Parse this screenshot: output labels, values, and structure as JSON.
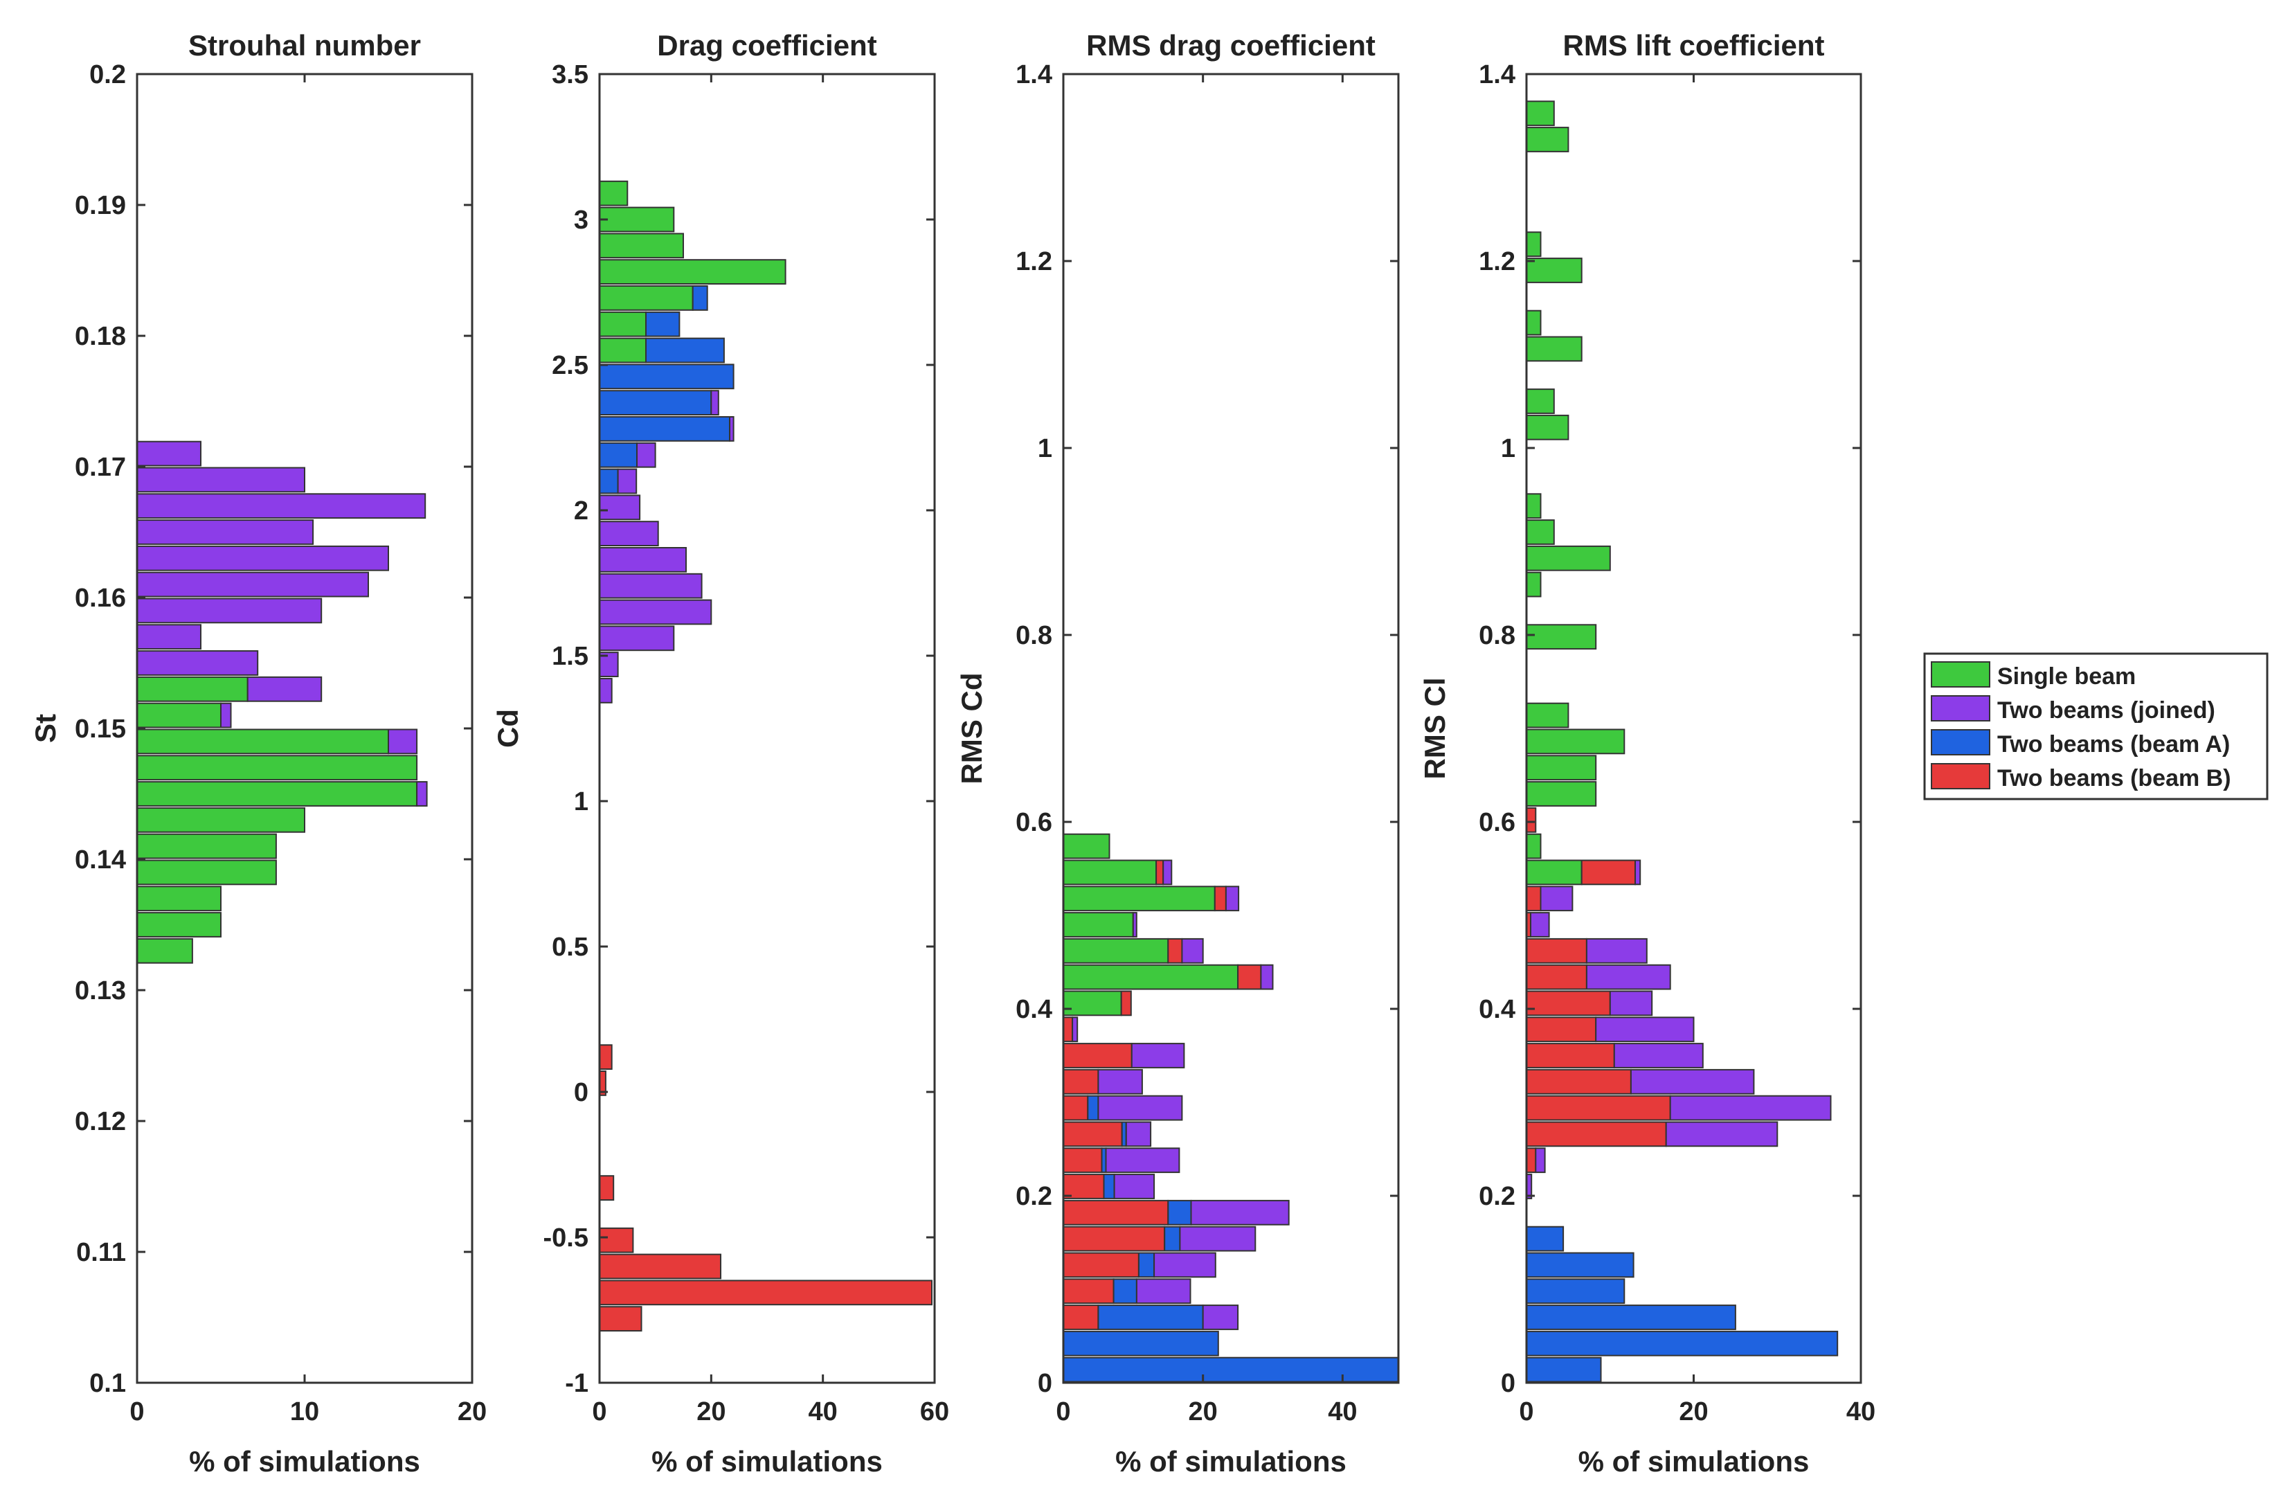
{
  "colors": {
    "single": "#3ec93e",
    "joined": "#8c3de8",
    "beamA": "#1f63e0",
    "beamB": "#e63a3a"
  },
  "legend": [
    {
      "key": "single",
      "label": "Single beam"
    },
    {
      "key": "joined",
      "label": "Two beams (joined)"
    },
    {
      "key": "beamA",
      "label": "Two beams (beam A)"
    },
    {
      "key": "beamB",
      "label": "Two beams (beam B)"
    }
  ],
  "chart_data": [
    {
      "type": "bar",
      "orientation": "horizontal-stacked-histogram",
      "title": "Strouhal number",
      "xlabel": "% of simulations",
      "ylabel": "St",
      "xlim": [
        0,
        20
      ],
      "ylim": [
        0.1,
        0.2
      ],
      "xticks": [
        "0",
        "10",
        "20"
      ],
      "xtickvals": [
        0,
        10,
        20
      ],
      "yticks": [
        "0.1",
        "0.11",
        "0.12",
        "0.13",
        "0.14",
        "0.15",
        "0.16",
        "0.17",
        "0.18",
        "0.19",
        "0.2"
      ],
      "ytickvals": [
        0.1,
        0.11,
        0.12,
        0.13,
        0.14,
        0.15,
        0.16,
        0.17,
        0.18,
        0.19,
        0.2
      ],
      "binwidth": 0.002,
      "bins": [
        {
          "y": 0.171,
          "single": 0,
          "beamB": 0,
          "beamA": 0,
          "joined": 3.8
        },
        {
          "y": 0.169,
          "single": 0,
          "beamB": 0,
          "beamA": 0,
          "joined": 10
        },
        {
          "y": 0.167,
          "single": 0,
          "beamB": 0,
          "beamA": 0,
          "joined": 17.2
        },
        {
          "y": 0.165,
          "single": 0,
          "beamB": 0,
          "beamA": 0,
          "joined": 10.5
        },
        {
          "y": 0.163,
          "single": 0,
          "beamB": 0,
          "beamA": 0,
          "joined": 15
        },
        {
          "y": 0.161,
          "single": 0,
          "beamB": 0,
          "beamA": 0,
          "joined": 13.8
        },
        {
          "y": 0.159,
          "single": 0,
          "beamB": 0,
          "beamA": 0,
          "joined": 11
        },
        {
          "y": 0.157,
          "single": 0,
          "beamB": 0,
          "beamA": 0,
          "joined": 3.8
        },
        {
          "y": 0.155,
          "single": 0,
          "beamB": 0,
          "beamA": 0,
          "joined": 7.2
        },
        {
          "y": 0.153,
          "single": 6.6,
          "beamB": 0,
          "beamA": 0,
          "joined": 4.4
        },
        {
          "y": 0.151,
          "single": 5,
          "beamB": 0,
          "beamA": 0,
          "joined": 0.6
        },
        {
          "y": 0.149,
          "single": 15,
          "beamB": 0,
          "beamA": 0,
          "joined": 1.7
        },
        {
          "y": 0.147,
          "single": 16.7,
          "beamB": 0,
          "beamA": 0,
          "joined": 0
        },
        {
          "y": 0.145,
          "single": 16.7,
          "beamB": 0,
          "beamA": 0,
          "joined": 0.6
        },
        {
          "y": 0.143,
          "single": 10,
          "beamB": 0,
          "beamA": 0,
          "joined": 0
        },
        {
          "y": 0.141,
          "single": 8.3,
          "beamB": 0,
          "beamA": 0,
          "joined": 0
        },
        {
          "y": 0.139,
          "single": 8.3,
          "beamB": 0,
          "beamA": 0,
          "joined": 0
        },
        {
          "y": 0.137,
          "single": 5,
          "beamB": 0,
          "beamA": 0,
          "joined": 0
        },
        {
          "y": 0.135,
          "single": 5,
          "beamB": 0,
          "beamA": 0,
          "joined": 0
        },
        {
          "y": 0.133,
          "single": 3.3,
          "beamB": 0,
          "beamA": 0,
          "joined": 0
        }
      ]
    },
    {
      "type": "bar",
      "orientation": "horizontal-stacked-histogram",
      "title": "Drag coefficient",
      "xlabel": "% of simulations",
      "ylabel": "Cd",
      "xlim": [
        0,
        60
      ],
      "ylim": [
        -1,
        3.5
      ],
      "xticks": [
        "0",
        "20",
        "40",
        "60"
      ],
      "xtickvals": [
        0,
        20,
        40,
        60
      ],
      "yticks": [
        "-1",
        "-0.5",
        "0",
        "0.5",
        "1",
        "1.5",
        "2",
        "2.5",
        "3",
        "3.5"
      ],
      "ytickvals": [
        -1,
        -0.5,
        0,
        0.5,
        1,
        1.5,
        2,
        2.5,
        3,
        3.5
      ],
      "binwidth": 0.09,
      "bins": [
        {
          "y": 3.09,
          "single": 5,
          "beamB": 0,
          "beamA": 0,
          "joined": 0
        },
        {
          "y": 3.0,
          "single": 13.3,
          "beamB": 0,
          "beamA": 0,
          "joined": 0
        },
        {
          "y": 2.91,
          "single": 15,
          "beamB": 0,
          "beamA": 0,
          "joined": 0
        },
        {
          "y": 2.82,
          "single": 33.3,
          "beamB": 0,
          "beamA": 0,
          "joined": 0
        },
        {
          "y": 2.73,
          "single": 16.7,
          "beamB": 0,
          "beamA": 2.6,
          "joined": 0
        },
        {
          "y": 2.64,
          "single": 8.3,
          "beamB": 0,
          "beamA": 6,
          "joined": 0
        },
        {
          "y": 2.55,
          "single": 8.3,
          "beamB": 0,
          "beamA": 14,
          "joined": 0
        },
        {
          "y": 2.46,
          "single": 0,
          "beamB": 0,
          "beamA": 24,
          "joined": 0
        },
        {
          "y": 2.37,
          "single": 0,
          "beamB": 0,
          "beamA": 20,
          "joined": 1.3
        },
        {
          "y": 2.28,
          "single": 0,
          "beamB": 0,
          "beamA": 23.3,
          "joined": 0.7
        },
        {
          "y": 2.19,
          "single": 0,
          "beamB": 0,
          "beamA": 6.7,
          "joined": 3.3
        },
        {
          "y": 2.1,
          "single": 0,
          "beamB": 0,
          "beamA": 3.3,
          "joined": 3.3
        },
        {
          "y": 2.01,
          "single": 0,
          "beamB": 0,
          "beamA": 0,
          "joined": 7.2
        },
        {
          "y": 1.92,
          "single": 0,
          "beamB": 0,
          "beamA": 0,
          "joined": 10.5
        },
        {
          "y": 1.83,
          "single": 0,
          "beamB": 0,
          "beamA": 0,
          "joined": 15.5
        },
        {
          "y": 1.74,
          "single": 0,
          "beamB": 0,
          "beamA": 0,
          "joined": 18.3
        },
        {
          "y": 1.65,
          "single": 0,
          "beamB": 0,
          "beamA": 0,
          "joined": 20
        },
        {
          "y": 1.56,
          "single": 0,
          "beamB": 0,
          "beamA": 0,
          "joined": 13.3
        },
        {
          "y": 1.47,
          "single": 0,
          "beamB": 0,
          "beamA": 0,
          "joined": 3.3
        },
        {
          "y": 1.38,
          "single": 0,
          "beamB": 0,
          "beamA": 0,
          "joined": 2.2
        },
        {
          "y": 0.12,
          "single": 0,
          "beamB": 2.2,
          "beamA": 0,
          "joined": 0
        },
        {
          "y": 0.03,
          "single": 0,
          "beamB": 1.1,
          "beamA": 0,
          "joined": 0
        },
        {
          "y": -0.33,
          "single": 0,
          "beamB": 2.5,
          "beamA": 0,
          "joined": 0
        },
        {
          "y": -0.51,
          "single": 0,
          "beamB": 6,
          "beamA": 0,
          "joined": 0
        },
        {
          "y": -0.6,
          "single": 0,
          "beamB": 21.7,
          "beamA": 0,
          "joined": 0
        },
        {
          "y": -0.69,
          "single": 0,
          "beamB": 59.5,
          "beamA": 0,
          "joined": 0
        },
        {
          "y": -0.78,
          "single": 0,
          "beamB": 7.5,
          "beamA": 0,
          "joined": 0
        }
      ]
    },
    {
      "type": "bar",
      "orientation": "horizontal-stacked-histogram",
      "title": "RMS drag coefficient",
      "xlabel": "% of simulations",
      "ylabel": "RMS Cd",
      "xlim": [
        0,
        48
      ],
      "ylim": [
        0,
        1.4
      ],
      "xticks": [
        "0",
        "20",
        "40"
      ],
      "xtickvals": [
        0,
        20,
        40
      ],
      "yticks": [
        "0",
        "0.2",
        "0.4",
        "0.6",
        "0.8",
        "1",
        "1.2",
        "1.4"
      ],
      "ytickvals": [
        0,
        0.2,
        0.4,
        0.6,
        0.8,
        1.0,
        1.2,
        1.4
      ],
      "binwidth": 0.028,
      "bins": [
        {
          "y": 0.574,
          "single": 6.6,
          "beamB": 0,
          "beamA": 0,
          "joined": 0
        },
        {
          "y": 0.546,
          "single": 13.3,
          "beamB": 1,
          "beamA": 0,
          "joined": 1.2
        },
        {
          "y": 0.518,
          "single": 21.7,
          "beamB": 1.6,
          "beamA": 0,
          "joined": 1.8
        },
        {
          "y": 0.49,
          "single": 10,
          "beamB": 0,
          "beamA": 0,
          "joined": 0.5
        },
        {
          "y": 0.462,
          "single": 15,
          "beamB": 2,
          "beamA": 0,
          "joined": 3
        },
        {
          "y": 0.434,
          "single": 25,
          "beamB": 3.3,
          "beamA": 0,
          "joined": 1.7
        },
        {
          "y": 0.406,
          "single": 8.3,
          "beamB": 1.4,
          "beamA": 0,
          "joined": 0
        },
        {
          "y": 0.378,
          "single": 0,
          "beamB": 1.3,
          "beamA": 0,
          "joined": 0.7
        },
        {
          "y": 0.35,
          "single": 0,
          "beamB": 9.8,
          "beamA": 0,
          "joined": 7.5
        },
        {
          "y": 0.322,
          "single": 0,
          "beamB": 5,
          "beamA": 0,
          "joined": 6.3
        },
        {
          "y": 0.294,
          "single": 0,
          "beamB": 3.5,
          "beamA": 1.5,
          "joined": 12
        },
        {
          "y": 0.266,
          "single": 0,
          "beamB": 8.4,
          "beamA": 0.6,
          "joined": 3.5
        },
        {
          "y": 0.238,
          "single": 0,
          "beamB": 5.5,
          "beamA": 0.6,
          "joined": 10.5
        },
        {
          "y": 0.21,
          "single": 0,
          "beamB": 5.8,
          "beamA": 1.5,
          "joined": 5.7
        },
        {
          "y": 0.182,
          "single": 0,
          "beamB": 15,
          "beamA": 3.3,
          "joined": 14
        },
        {
          "y": 0.154,
          "single": 0,
          "beamB": 14.5,
          "beamA": 2.2,
          "joined": 10.8
        },
        {
          "y": 0.126,
          "single": 0,
          "beamB": 10.8,
          "beamA": 2.2,
          "joined": 8.8
        },
        {
          "y": 0.098,
          "single": 0,
          "beamB": 7.2,
          "beamA": 3.3,
          "joined": 7.7
        },
        {
          "y": 0.07,
          "single": 0,
          "beamB": 5,
          "beamA": 15,
          "joined": 5
        },
        {
          "y": 0.042,
          "single": 0,
          "beamB": 0,
          "beamA": 22.2,
          "joined": 0
        },
        {
          "y": 0.014,
          "single": 0,
          "beamB": 0,
          "beamA": 48,
          "joined": 0
        }
      ]
    },
    {
      "type": "bar",
      "orientation": "horizontal-stacked-histogram",
      "title": "RMS lift coefficient",
      "xlabel": "% of simulations",
      "ylabel": "RMS Cl",
      "xlim": [
        0,
        40
      ],
      "ylim": [
        0,
        1.4
      ],
      "xticks": [
        "0",
        "20",
        "40"
      ],
      "xtickvals": [
        0,
        20,
        40
      ],
      "yticks": [
        "0",
        "0.2",
        "0.4",
        "0.6",
        "0.8",
        "1",
        "1.2",
        "1.4"
      ],
      "ytickvals": [
        0,
        0.2,
        0.4,
        0.6,
        0.8,
        1.0,
        1.2,
        1.4
      ],
      "binwidth": 0.028,
      "bins": [
        {
          "y": 1.358,
          "single": 3.3,
          "beamB": 0,
          "beamA": 0,
          "joined": 0
        },
        {
          "y": 1.33,
          "single": 5,
          "beamB": 0,
          "beamA": 0,
          "joined": 0
        },
        {
          "y": 1.218,
          "single": 1.7,
          "beamB": 0,
          "beamA": 0,
          "joined": 0
        },
        {
          "y": 1.19,
          "single": 6.6,
          "beamB": 0,
          "beamA": 0,
          "joined": 0
        },
        {
          "y": 1.134,
          "single": 1.7,
          "beamB": 0,
          "beamA": 0,
          "joined": 0
        },
        {
          "y": 1.106,
          "single": 6.6,
          "beamB": 0,
          "beamA": 0,
          "joined": 0
        },
        {
          "y": 1.05,
          "single": 3.3,
          "beamB": 0,
          "beamA": 0,
          "joined": 0
        },
        {
          "y": 1.022,
          "single": 5,
          "beamB": 0,
          "beamA": 0,
          "joined": 0
        },
        {
          "y": 0.938,
          "single": 1.7,
          "beamB": 0,
          "beamA": 0,
          "joined": 0
        },
        {
          "y": 0.91,
          "single": 3.3,
          "beamB": 0,
          "beamA": 0,
          "joined": 0
        },
        {
          "y": 0.882,
          "single": 10,
          "beamB": 0,
          "beamA": 0,
          "joined": 0
        },
        {
          "y": 0.854,
          "single": 1.7,
          "beamB": 0,
          "beamA": 0,
          "joined": 0
        },
        {
          "y": 0.798,
          "single": 8.3,
          "beamB": 0,
          "beamA": 0,
          "joined": 0
        },
        {
          "y": 0.714,
          "single": 5,
          "beamB": 0,
          "beamA": 0,
          "joined": 0
        },
        {
          "y": 0.686,
          "single": 11.7,
          "beamB": 0,
          "beamA": 0,
          "joined": 0
        },
        {
          "y": 0.658,
          "single": 8.3,
          "beamB": 0,
          "beamA": 0,
          "joined": 0
        },
        {
          "y": 0.63,
          "single": 8.3,
          "beamB": 0,
          "beamA": 0,
          "joined": 0
        },
        {
          "y": 0.602,
          "single": 0,
          "beamB": 1.1,
          "beamA": 0,
          "joined": 0
        },
        {
          "y": 0.574,
          "single": 1.7,
          "beamB": 0,
          "beamA": 0,
          "joined": 0
        },
        {
          "y": 0.546,
          "single": 6.6,
          "beamB": 6.4,
          "beamA": 0,
          "joined": 0.6
        },
        {
          "y": 0.518,
          "single": 0,
          "beamB": 1.7,
          "beamA": 0,
          "joined": 3.8
        },
        {
          "y": 0.49,
          "single": 0,
          "beamB": 0.5,
          "beamA": 0,
          "joined": 2.2
        },
        {
          "y": 0.462,
          "single": 0,
          "beamB": 7.2,
          "beamA": 0,
          "joined": 7.2
        },
        {
          "y": 0.434,
          "single": 0,
          "beamB": 7.2,
          "beamA": 0,
          "joined": 10
        },
        {
          "y": 0.406,
          "single": 0,
          "beamB": 10,
          "beamA": 0,
          "joined": 5
        },
        {
          "y": 0.378,
          "single": 0,
          "beamB": 8.3,
          "beamA": 0,
          "joined": 11.7
        },
        {
          "y": 0.35,
          "single": 0,
          "beamB": 10.5,
          "beamA": 0,
          "joined": 10.6
        },
        {
          "y": 0.322,
          "single": 0,
          "beamB": 12.5,
          "beamA": 0,
          "joined": 14.7
        },
        {
          "y": 0.294,
          "single": 0,
          "beamB": 17.2,
          "beamA": 0,
          "joined": 19.2
        },
        {
          "y": 0.266,
          "single": 0,
          "beamB": 16.7,
          "beamA": 0,
          "joined": 13.3
        },
        {
          "y": 0.238,
          "single": 0,
          "beamB": 1.1,
          "beamA": 0,
          "joined": 1.1
        },
        {
          "y": 0.21,
          "single": 0,
          "beamB": 0,
          "beamA": 0,
          "joined": 0.6
        },
        {
          "y": 0.154,
          "single": 0,
          "beamB": 0,
          "beamA": 4.4,
          "joined": 0
        },
        {
          "y": 0.126,
          "single": 0,
          "beamB": 0,
          "beamA": 12.8,
          "joined": 0
        },
        {
          "y": 0.098,
          "single": 0,
          "beamB": 0,
          "beamA": 11.7,
          "joined": 0
        },
        {
          "y": 0.07,
          "single": 0,
          "beamB": 0,
          "beamA": 25,
          "joined": 0
        },
        {
          "y": 0.042,
          "single": 0,
          "beamB": 0,
          "beamA": 37.2,
          "joined": 0
        },
        {
          "y": 0.014,
          "single": 0,
          "beamB": 0,
          "beamA": 8.9,
          "joined": 0
        }
      ]
    }
  ]
}
